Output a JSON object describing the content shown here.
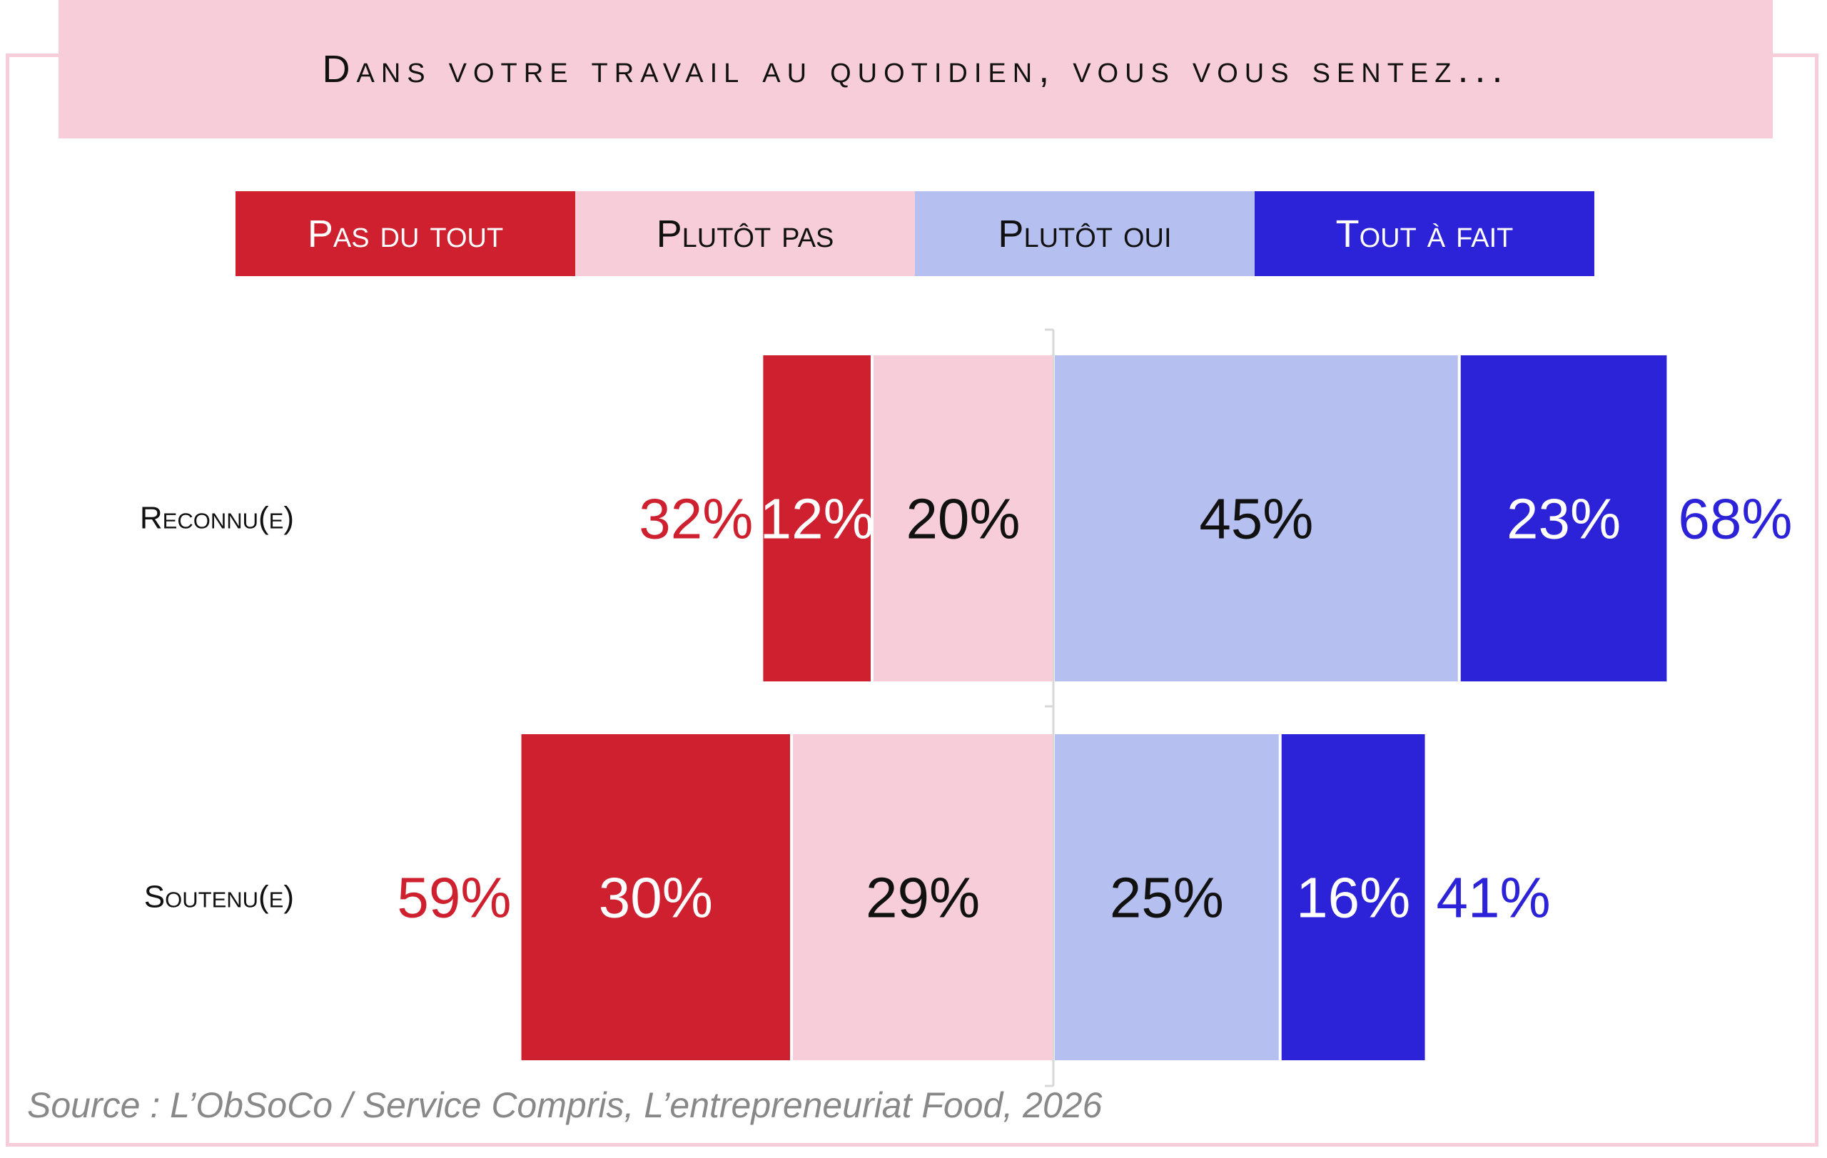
{
  "title": "Dans votre travail au quotidien, vous vous sentez...",
  "source": "Source : L’ObSoCo / Service Compris, L’entrepreneuriat Food, 2026",
  "colors": {
    "pas_du_tout": "#cf202f",
    "plutot_pas": "#f6cdd8",
    "plutot_oui": "#b5c0f0",
    "tout_a_fait": "#2c22d8"
  },
  "chart_data": {
    "type": "bar",
    "subtype": "diverging-stacked-horizontal",
    "title": "Dans votre travail au quotidien, vous vous sentez...",
    "legend": [
      "Pas du tout",
      "Plutôt pas",
      "Plutôt oui",
      "Tout à fait"
    ],
    "legend_placement": "top",
    "categories": [
      "Reconnu(e)",
      "Soutenu(e)"
    ],
    "series": [
      {
        "name": "Pas du tout",
        "values": [
          12,
          30
        ],
        "labels": [
          "12%",
          "30%"
        ]
      },
      {
        "name": "Plutôt pas",
        "values": [
          20,
          29
        ],
        "labels": [
          "20%",
          "29%"
        ]
      },
      {
        "name": "Plutôt oui",
        "values": [
          45,
          25
        ],
        "labels": [
          "45%",
          "25%"
        ]
      },
      {
        "name": "Tout à fait",
        "values": [
          23,
          16
        ],
        "labels": [
          "23%",
          "16%"
        ]
      }
    ],
    "totals_negative": [
      "32%",
      "59%"
    ],
    "totals_positive": [
      "68%",
      "41%"
    ]
  }
}
